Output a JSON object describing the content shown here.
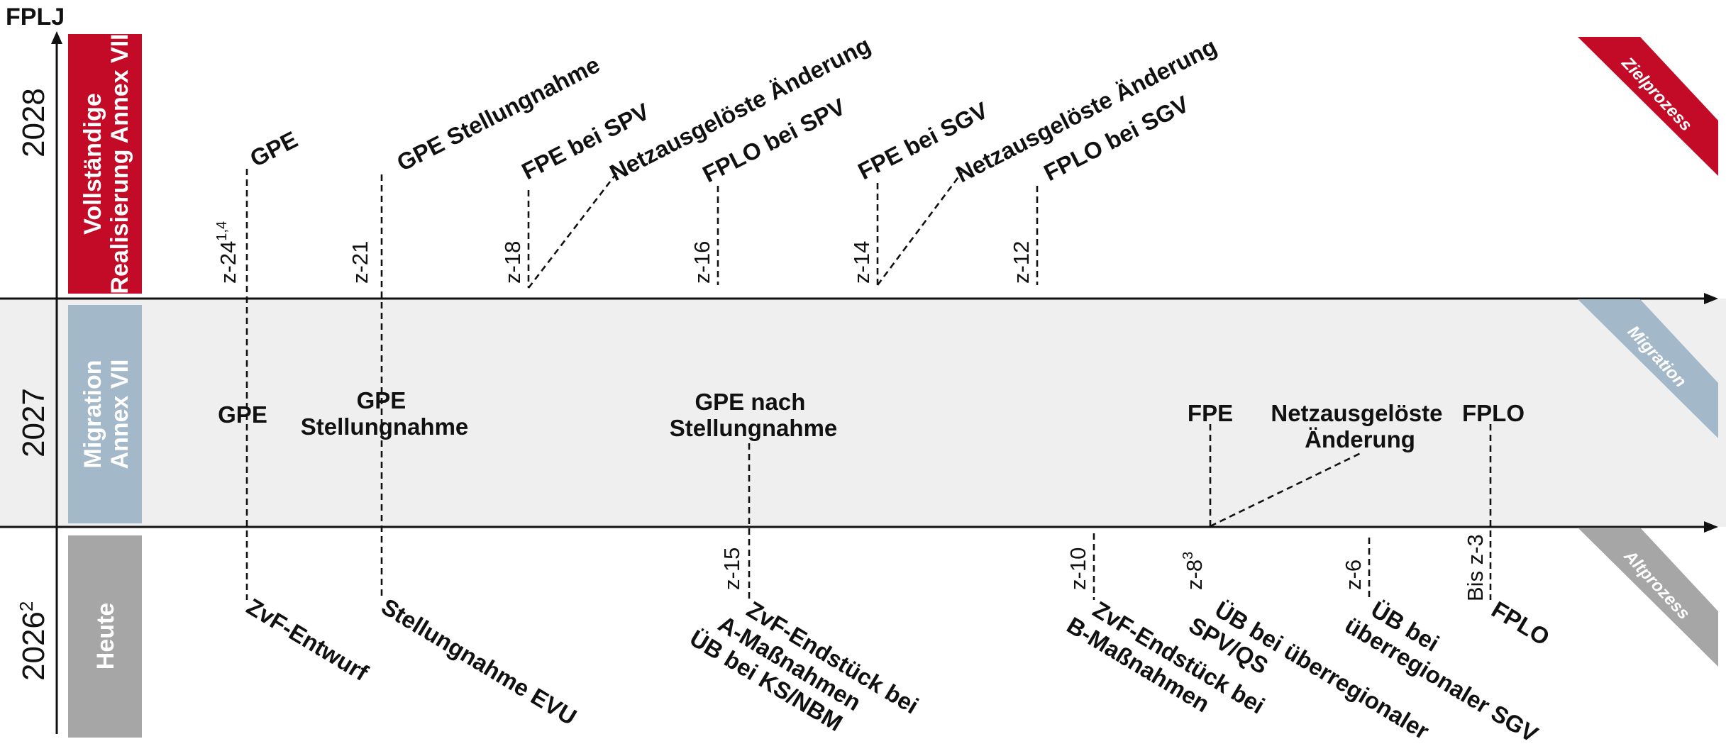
{
  "axis": {
    "label": "FPLJ"
  },
  "colors": {
    "zielprozess": "#c30b27",
    "migration": "#a3b8c8",
    "altprozess": "#a6a6a6",
    "band_2027": "#efefef",
    "line": "#111111"
  },
  "rows": [
    {
      "year": "2028",
      "phase_line1": "Vollständige",
      "phase_line2": "Realisierung Annex VII",
      "tab": "Zielprozess",
      "milestones": [
        {
          "z": "z-24",
          "z_sup": "1,4",
          "label": "GPE"
        },
        {
          "z": "z-21",
          "label": "GPE Stellungnahme"
        },
        {
          "z": "z-18",
          "label": "FPE bei SPV"
        },
        {
          "label": "Netzausgelöste Änderung"
        },
        {
          "z": "z-16",
          "label": "FPLO bei SPV"
        },
        {
          "z": "z-14",
          "label": "FPE bei SGV"
        },
        {
          "label": "Netzausgelöste Änderung"
        },
        {
          "z": "z-12",
          "label": "FPLO bei SGV"
        }
      ]
    },
    {
      "year": "2027",
      "phase_line1": "Migration",
      "phase_line2": "Annex VII",
      "tab": "Migration",
      "milestones": [
        {
          "label": "GPE"
        },
        {
          "label_line1": "GPE",
          "label_line2": "Stellungnahme"
        },
        {
          "label_line1": "GPE nach",
          "label_line2": "Stellungnahme"
        },
        {
          "label": "FPE"
        },
        {
          "label_line1": "Netzausgelöste",
          "label_line2": "Änderung"
        },
        {
          "label": "FPLO"
        }
      ]
    },
    {
      "year": "2026",
      "year_sup": "2",
      "phase_line1": "Heute",
      "tab": "Altprozess",
      "milestones": [
        {
          "label": "ZvF-Entwurf"
        },
        {
          "label": "Stellungnahme EVU"
        },
        {
          "z": "z-15",
          "label_line1": "ZvF-Endstück bei",
          "label_line2": "A-Maßnahmen",
          "label_line3": "ÜB bei KS/NBM"
        },
        {
          "z": "z-10",
          "label_line1": "ZvF-Endstück bei",
          "label_line2": "B-Maßnahmen"
        },
        {
          "z": "z-8",
          "z_sup": "3",
          "label_line1": "ÜB bei überregionaler",
          "label_line2": "SPV/QS"
        },
        {
          "z": "z-6",
          "label_line1": "ÜB bei",
          "label_line2": "überregionaler SGV"
        },
        {
          "z": "Bis z-3",
          "label": "FPLO"
        }
      ]
    }
  ]
}
